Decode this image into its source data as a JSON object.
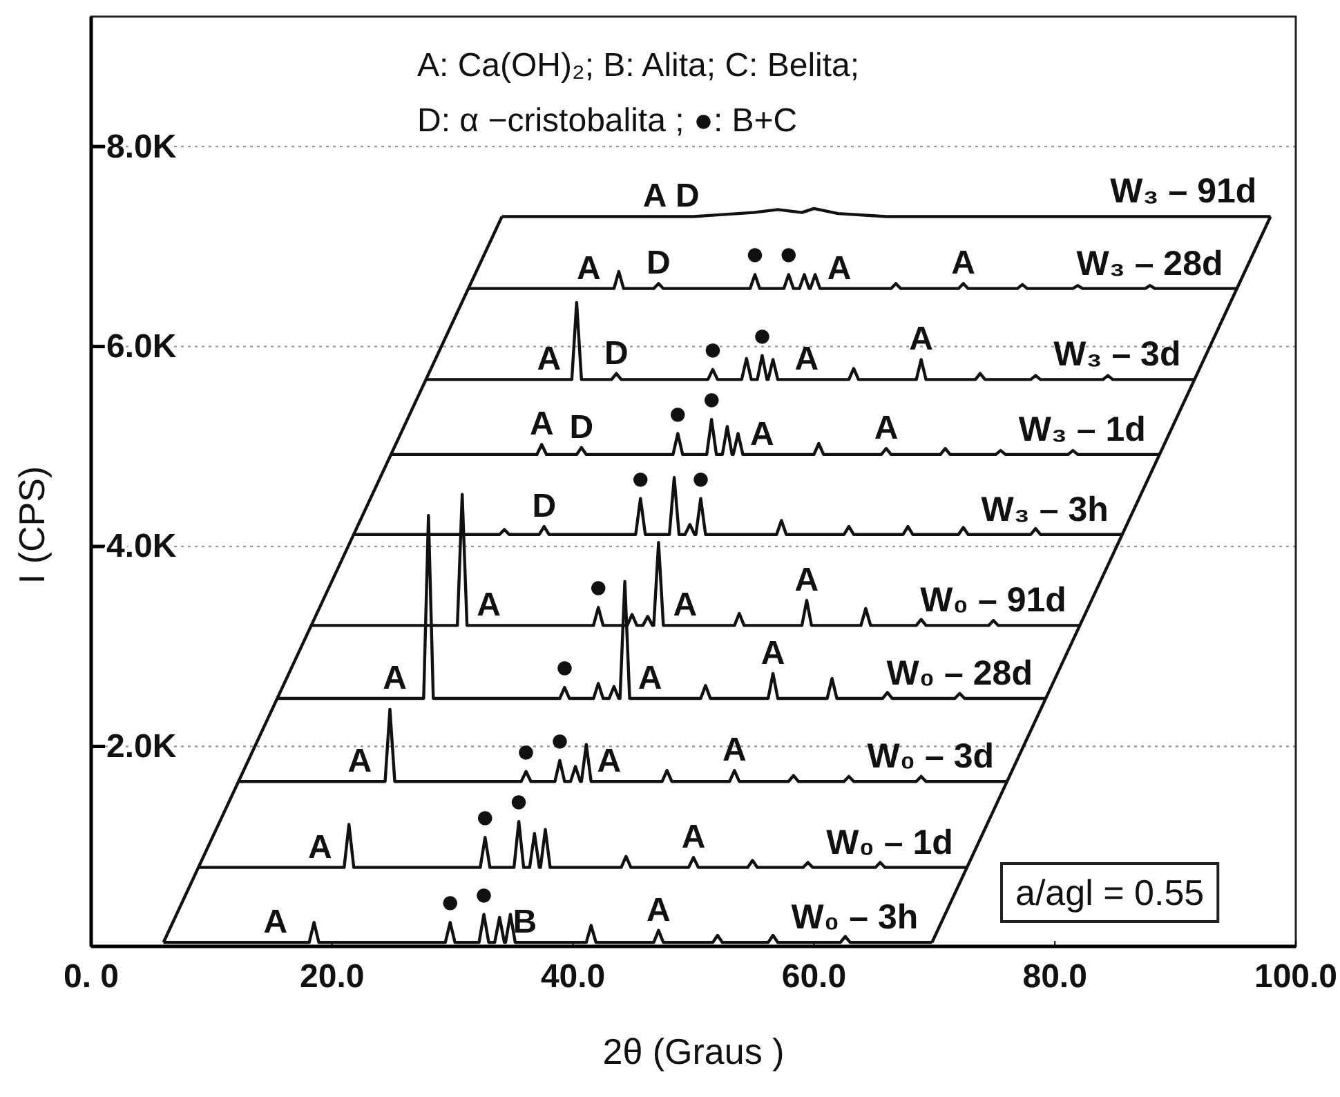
{
  "chart_data": {
    "type": "line",
    "xlabel": "2θ (Graus )",
    "ylabel": "I (CPS)",
    "xlim": [
      0,
      100
    ],
    "ylim": [
      0,
      9300
    ],
    "xticks": [
      {
        "value": 0,
        "label": "0. 0"
      },
      {
        "value": 20,
        "label": "20.0"
      },
      {
        "value": 40,
        "label": "40.0"
      },
      {
        "value": 60,
        "label": "60.0"
      },
      {
        "value": 80,
        "label": "80.0"
      },
      {
        "value": 100,
        "label": "100.0"
      }
    ],
    "yticks": [
      {
        "value": 2000,
        "label": "2.0K"
      },
      {
        "value": 4000,
        "label": "4.0K"
      },
      {
        "value": 6000,
        "label": "6.0K"
      },
      {
        "value": 8000,
        "label": "8.0K"
      }
    ],
    "grid": "y",
    "series": [
      {
        "name": "W₀ – 3h",
        "color": "#111111",
        "x": [
          6.0,
          18.1,
          18.5,
          18.9,
          29.4,
          29.8,
          30.2,
          32.2,
          32.6,
          33.0,
          33.5,
          33.9,
          34.3,
          34.4,
          34.8,
          35.2,
          41.1,
          41.5,
          41.9,
          46.7,
          47.1,
          47.5,
          51.6,
          52.0,
          52.4,
          56.2,
          56.6,
          57.0,
          62.2,
          62.6,
          63.0,
          69.8
        ],
        "values": [
          40,
          40,
          240,
          40,
          40,
          240,
          40,
          40,
          320,
          40,
          40,
          290,
          40,
          40,
          320,
          40,
          40,
          210,
          40,
          40,
          160,
          40,
          40,
          110,
          40,
          40,
          110,
          40,
          40,
          100,
          40,
          40
        ]
      },
      {
        "name": "W₀ – 1d",
        "color": "#111111",
        "x": [
          8.9,
          21.0,
          21.4,
          21.8,
          32.3,
          32.7,
          33.1,
          35.1,
          35.5,
          35.9,
          36.4,
          36.8,
          37.2,
          37.3,
          37.7,
          38.1,
          44.0,
          44.4,
          44.8,
          49.6,
          50.0,
          50.4,
          54.5,
          54.9,
          55.3,
          59.1,
          59.5,
          59.9,
          65.1,
          65.5,
          65.9,
          72.7
        ],
        "values": [
          790,
          790,
          1220,
          790,
          790,
          1090,
          790,
          790,
          1250,
          790,
          790,
          1130,
          790,
          790,
          1170,
          790,
          790,
          900,
          790,
          790,
          890,
          790,
          790,
          860,
          790,
          790,
          840,
          790,
          790,
          840,
          790,
          790
        ]
      },
      {
        "name": "W₀ – 3d",
        "color": "#111111",
        "x": [
          12.3,
          24.4,
          24.8,
          25.2,
          35.7,
          36.1,
          36.5,
          38.5,
          38.9,
          39.3,
          39.8,
          40.2,
          40.6,
          40.7,
          41.1,
          41.5,
          47.4,
          47.8,
          48.2,
          53.0,
          53.4,
          53.8,
          57.9,
          58.3,
          58.7,
          62.5,
          62.9,
          63.3,
          68.5,
          68.9,
          69.3,
          76.1
        ],
        "values": [
          1650,
          1650,
          2370,
          1650,
          1650,
          1750,
          1650,
          1650,
          1860,
          1650,
          1650,
          1800,
          1650,
          1650,
          2020,
          1650,
          1650,
          1760,
          1650,
          1650,
          1760,
          1650,
          1650,
          1710,
          1650,
          1650,
          1700,
          1650,
          1650,
          1700,
          1650,
          1650
        ]
      },
      {
        "name": "W₀ – 28d",
        "color": "#111111",
        "x": [
          15.5,
          27.6,
          28.0,
          28.4,
          38.9,
          39.3,
          39.7,
          41.7,
          42.1,
          42.5,
          43.0,
          43.4,
          43.8,
          43.9,
          44.3,
          44.7,
          50.6,
          51.0,
          51.4,
          56.2,
          56.6,
          57.0,
          61.1,
          61.5,
          61.9,
          65.7,
          66.1,
          66.5,
          71.7,
          72.1,
          72.5,
          79.3
        ],
        "values": [
          2480,
          2480,
          4310,
          2480,
          2480,
          2590,
          2480,
          2480,
          2630,
          2480,
          2480,
          2600,
          2480,
          2480,
          3650,
          2480,
          2480,
          2610,
          2480,
          2480,
          2730,
          2480,
          2480,
          2680,
          2480,
          2480,
          2540,
          2480,
          2480,
          2530,
          2480,
          2480
        ]
      },
      {
        "name": "W₀ – 91d",
        "color": "#111111",
        "x": [
          18.3,
          30.4,
          30.8,
          31.2,
          41.7,
          42.1,
          42.5,
          44.5,
          44.9,
          45.3,
          45.8,
          46.2,
          46.6,
          46.7,
          47.1,
          47.5,
          53.4,
          53.8,
          54.2,
          59.0,
          59.4,
          59.8,
          63.9,
          64.3,
          64.7,
          68.5,
          68.9,
          69.3,
          74.5,
          74.9,
          75.3,
          82.1
        ],
        "values": [
          3210,
          3210,
          4520,
          3210,
          3210,
          3390,
          3210,
          3210,
          3320,
          3210,
          3210,
          3300,
          3210,
          3210,
          4040,
          3210,
          3210,
          3330,
          3210,
          3210,
          3460,
          3210,
          3210,
          3380,
          3210,
          3210,
          3270,
          3210,
          3210,
          3260,
          3210,
          3210
        ]
      },
      {
        "name": "W₃ – 3h",
        "color": "#111111",
        "x": [
          21.8,
          33.9,
          34.3,
          34.7,
          37.2,
          37.6,
          38.0,
          45.2,
          45.6,
          46.0,
          48.0,
          48.4,
          48.8,
          49.3,
          49.7,
          50.1,
          50.2,
          50.6,
          51.0,
          56.9,
          57.3,
          57.7,
          62.5,
          62.9,
          63.3,
          67.4,
          67.8,
          68.2,
          72.0,
          72.4,
          72.8,
          78.0,
          78.4,
          78.8,
          85.6
        ],
        "values": [
          4120,
          4120,
          4170,
          4120,
          4120,
          4200,
          4120,
          4120,
          4480,
          4120,
          4120,
          4690,
          4120,
          4120,
          4220,
          4120,
          4120,
          4480,
          4120,
          4120,
          4260,
          4120,
          4120,
          4200,
          4120,
          4120,
          4200,
          4120,
          4120,
          4190,
          4120,
          4120,
          4180,
          4120,
          4120
        ]
      },
      {
        "name": "W₃ – 1d",
        "color": "#111111",
        "x": [
          24.9,
          37.0,
          37.4,
          37.8,
          40.3,
          40.7,
          41.1,
          48.3,
          48.7,
          49.1,
          51.1,
          51.5,
          51.9,
          52.4,
          52.8,
          53.2,
          53.3,
          53.7,
          54.1,
          60.0,
          60.4,
          60.8,
          65.6,
          66.0,
          66.4,
          70.5,
          70.9,
          71.3,
          75.1,
          75.5,
          75.9,
          81.1,
          81.5,
          81.9,
          88.7
        ],
        "values": [
          4920,
          4920,
          5020,
          4920,
          4920,
          4990,
          4920,
          4920,
          5130,
          4920,
          4920,
          5270,
          4920,
          4920,
          5200,
          4920,
          4920,
          5130,
          4920,
          4920,
          5030,
          4920,
          4920,
          4980,
          4920,
          4920,
          4980,
          4920,
          4920,
          4960,
          4920,
          4920,
          4960,
          4920,
          4920
        ]
      },
      {
        "name": "W₃ – 3d",
        "color": "#111111",
        "x": [
          27.8,
          39.9,
          40.3,
          40.7,
          43.2,
          43.6,
          44.0,
          51.2,
          51.6,
          52.0,
          54.0,
          54.4,
          54.8,
          55.3,
          55.7,
          56.1,
          56.2,
          56.6,
          57.0,
          62.9,
          63.3,
          63.7,
          68.5,
          68.9,
          69.3,
          73.4,
          73.8,
          74.2,
          78.0,
          78.4,
          78.8,
          84.0,
          84.4,
          84.8,
          91.6
        ],
        "values": [
          5670,
          5670,
          6440,
          5670,
          5670,
          5730,
          5670,
          5670,
          5770,
          5670,
          5670,
          5880,
          5670,
          5670,
          5910,
          5670,
          5670,
          5870,
          5670,
          5670,
          5780,
          5670,
          5670,
          5870,
          5670,
          5670,
          5730,
          5670,
          5670,
          5710,
          5670,
          5670,
          5710,
          5670,
          5670
        ]
      },
      {
        "name": "W₃ – 28d",
        "color": "#111111",
        "x": [
          31.3,
          43.4,
          43.8,
          44.2,
          46.7,
          47.1,
          47.5,
          54.7,
          55.1,
          55.5,
          57.5,
          57.9,
          58.3,
          58.8,
          59.2,
          59.6,
          59.7,
          60.1,
          60.5,
          66.4,
          66.8,
          67.2,
          72.0,
          72.4,
          72.8,
          76.9,
          77.3,
          77.7,
          81.5,
          81.9,
          82.3,
          87.5,
          87.9,
          88.3,
          95.1
        ],
        "values": [
          6580,
          6580,
          6750,
          6580,
          6580,
          6630,
          6580,
          6580,
          6720,
          6580,
          6580,
          6720,
          6580,
          6580,
          6720,
          6580,
          6580,
          6720,
          6580,
          6580,
          6630,
          6580,
          6580,
          6630,
          6580,
          6580,
          6620,
          6580,
          6580,
          6610,
          6580,
          6580,
          6610,
          6580,
          6580
        ]
      },
      {
        "name": "W₃ – 91d",
        "color": "#111111",
        "x": [
          34.1,
          50.0,
          55.0,
          57.0,
          59.0,
          60.0,
          62.0,
          66.0,
          97.9
        ],
        "values": [
          7300,
          7300,
          7340,
          7370,
          7340,
          7380,
          7330,
          7300,
          7300
        ]
      },
      {
        "color": "#111111",
        "x": [
          6.0,
          34.1
        ],
        "values": [
          40,
          7300
        ]
      },
      {
        "color": "#111111",
        "x": [
          69.8,
          97.9
        ],
        "values": [
          40,
          7300
        ]
      }
    ],
    "annotations": [
      "A: Ca(OH)₂; B: Alita; C: Belita;",
      "D: α −cristobalita ; ●: B+C",
      {
        "text": "A",
        "x": 15.3,
        "y": 40
      },
      {
        "text": "●",
        "x": 29.8,
        "y": 240
      },
      {
        "text": "●",
        "x": 32.6,
        "y": 320
      },
      {
        "text": "B",
        "x": 36.0,
        "y": 40
      },
      {
        "text": "A",
        "x": 47.1,
        "y": 160
      },
      {
        "text": "A",
        "x": 19.0,
        "y": 790
      },
      {
        "text": "●",
        "x": 32.7,
        "y": 1090
      },
      {
        "text": "●",
        "x": 35.5,
        "y": 1250
      },
      {
        "text": "A",
        "x": 50.0,
        "y": 890
      },
      {
        "text": "A",
        "x": 22.3,
        "y": 1650
      },
      {
        "text": "●",
        "x": 36.1,
        "y": 1750
      },
      {
        "text": "●",
        "x": 38.9,
        "y": 1860
      },
      {
        "text": "A",
        "x": 43.0,
        "y": 1650
      },
      {
        "text": "A",
        "x": 53.4,
        "y": 1760
      },
      {
        "text": "A",
        "x": 25.2,
        "y": 2480
      },
      {
        "text": "●",
        "x": 39.3,
        "y": 2590
      },
      {
        "text": "A",
        "x": 46.4,
        "y": 2480
      },
      {
        "text": "A",
        "x": 56.6,
        "y": 2730
      },
      {
        "text": "A",
        "x": 33.0,
        "y": 3210
      },
      {
        "text": "●",
        "x": 42.1,
        "y": 3390
      },
      {
        "text": "A",
        "x": 49.3,
        "y": 3210
      },
      {
        "text": "A",
        "x": 59.4,
        "y": 3460
      },
      {
        "text": "D",
        "x": 37.6,
        "y": 4200
      },
      {
        "text": "●",
        "x": 45.6,
        "y": 4480
      },
      {
        "text": "●",
        "x": 50.6,
        "y": 4480
      },
      {
        "text": "A",
        "x": 37.4,
        "y": 5020
      },
      {
        "text": "D",
        "x": 40.7,
        "y": 4990
      },
      {
        "text": "●",
        "x": 48.7,
        "y": 5130
      },
      {
        "text": "●",
        "x": 51.5,
        "y": 5270
      },
      {
        "text": "A",
        "x": 55.7,
        "y": 4920
      },
      {
        "text": "A",
        "x": 66.0,
        "y": 4980
      },
      {
        "text": "A",
        "x": 38.0,
        "y": 5670
      },
      {
        "text": "D",
        "x": 43.6,
        "y": 5730
      },
      {
        "text": "●",
        "x": 51.6,
        "y": 5770
      },
      {
        "text": "●",
        "x": 55.7,
        "y": 5910
      },
      {
        "text": "A",
        "x": 59.4,
        "y": 5670
      },
      {
        "text": "A",
        "x": 68.9,
        "y": 5870
      },
      {
        "text": "A",
        "x": 41.3,
        "y": 6580
      },
      {
        "text": "D",
        "x": 47.1,
        "y": 6630
      },
      {
        "text": "●",
        "x": 55.1,
        "y": 6720
      },
      {
        "text": "●",
        "x": 57.9,
        "y": 6720
      },
      {
        "text": "A",
        "x": 62.1,
        "y": 6580
      },
      {
        "text": "A",
        "x": 72.4,
        "y": 6630
      },
      {
        "text": "A",
        "x": 46.8,
        "y": 7300
      },
      {
        "text": "D",
        "x": 49.5,
        "y": 7300
      },
      "a/agl = 0.55"
    ]
  }
}
